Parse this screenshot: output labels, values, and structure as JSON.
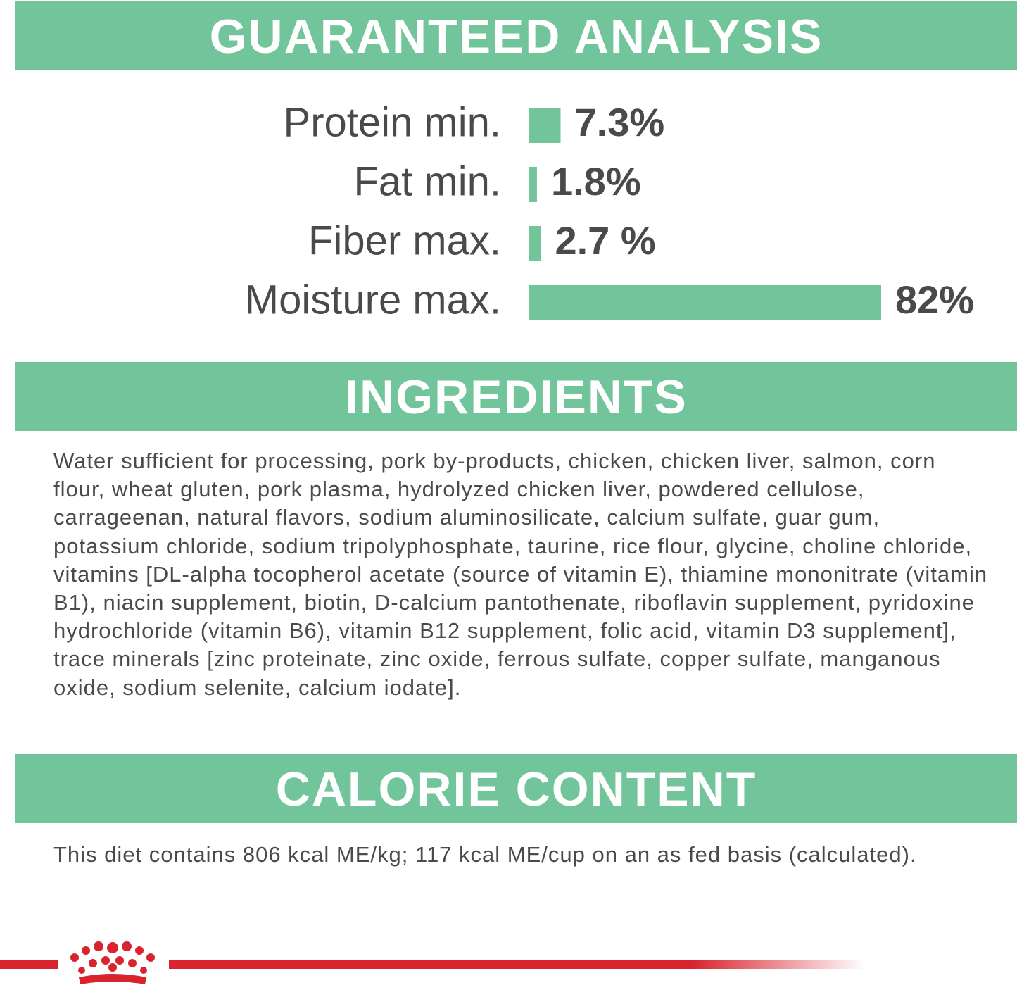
{
  "analysis": {
    "title": "GUARANTEED ANALYSIS",
    "type": "bar",
    "color": "#72c59a",
    "categories": [
      "Protein min.",
      "Fat min.",
      "Fiber max.",
      "Moisture max."
    ],
    "values": [
      7.3,
      1.8,
      2.7,
      82
    ],
    "value_labels": [
      "7.3%",
      "1.8%",
      "2.7 %",
      "82%"
    ]
  },
  "ingredients": {
    "title": "INGREDIENTS",
    "text": "Water sufficient for processing, pork by-products, chicken, chicken liver, salmon, corn flour, wheat gluten, pork plasma, hydrolyzed chicken liver, powdered cellulose, carrageenan, natural flavors, sodium aluminosilicate, calcium sulfate, guar gum, potassium chloride, sodium tripolyphosphate, taurine, rice flour, glycine, choline chloride, vitamins [DL-alpha tocopherol acetate (source of vitamin E), thiamine mononitrate (vitamin B1), niacin supplement, biotin, D-calcium pantothenate, riboflavin supplement, pyridoxine hydrochloride (vitamin B6), vitamin B12 supplement, folic acid, vitamin D3 supplement], trace minerals [zinc proteinate, zinc oxide, ferrous sulfate, copper sulfate, manganous oxide, sodium selenite, calcium iodate]."
  },
  "calorie": {
    "title": "CALORIE CONTENT",
    "text": "This diet contains 806 kcal ME/kg; 117 kcal ME/cup on an as fed basis (calculated)."
  }
}
